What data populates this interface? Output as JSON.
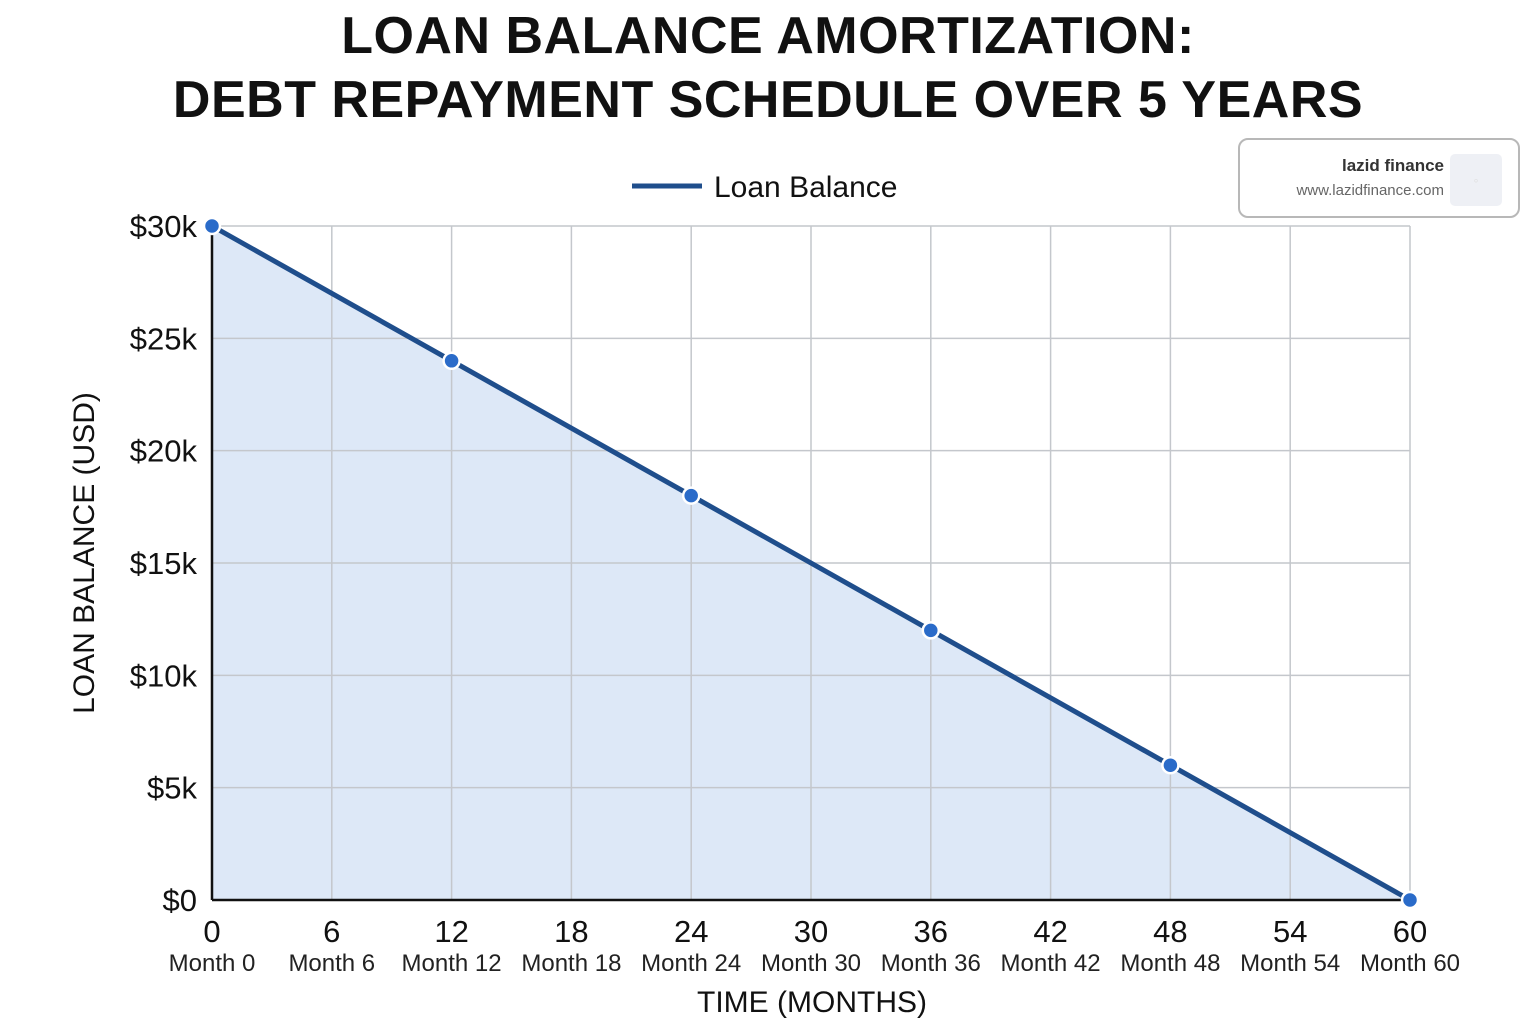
{
  "chart_data": {
    "type": "area",
    "title_lines": [
      "LOAN BALANCE AMORTIZATION:",
      "DEBT REPAYMENT SCHEDULE OVER 5 YEARS"
    ],
    "xlabel": "TIME (MONTHS)",
    "ylabel": "LOAN BALANCE (USD)",
    "xlim": [
      0,
      60
    ],
    "ylim": [
      0,
      30000
    ],
    "x_ticks": [
      0,
      6,
      12,
      18,
      24,
      30,
      36,
      42,
      48,
      54,
      60
    ],
    "x_tick_labels": [
      "0",
      "6",
      "12",
      "18",
      "24",
      "30",
      "36",
      "42",
      "48",
      "54",
      "60"
    ],
    "x_sub_labels": [
      "Month 0",
      "Month 6",
      "Month 12",
      "Month 18",
      "Month 24",
      "Month 30",
      "Month 36",
      "Month 42",
      "Month 48",
      "Month 54",
      "Month 60"
    ],
    "y_ticks": [
      0,
      5000,
      10000,
      15000,
      20000,
      25000,
      30000
    ],
    "y_tick_labels": [
      "$0",
      "$5k",
      "$10k",
      "$15k",
      "$20k",
      "$25k",
      "$30k"
    ],
    "grid": true,
    "legend_position": "top-center",
    "series": [
      {
        "name": "Loan Balance",
        "color": "#1f4e8c",
        "fill": "#dde8f7",
        "marker_color": "#2a6bc9",
        "x": [
          0,
          12,
          24,
          36,
          48,
          60
        ],
        "y": [
          30000,
          24000,
          18000,
          12000,
          6000,
          0
        ]
      }
    ]
  },
  "watermark": {
    "name": "lazid finance",
    "url": "www.lazidfinance.com"
  }
}
